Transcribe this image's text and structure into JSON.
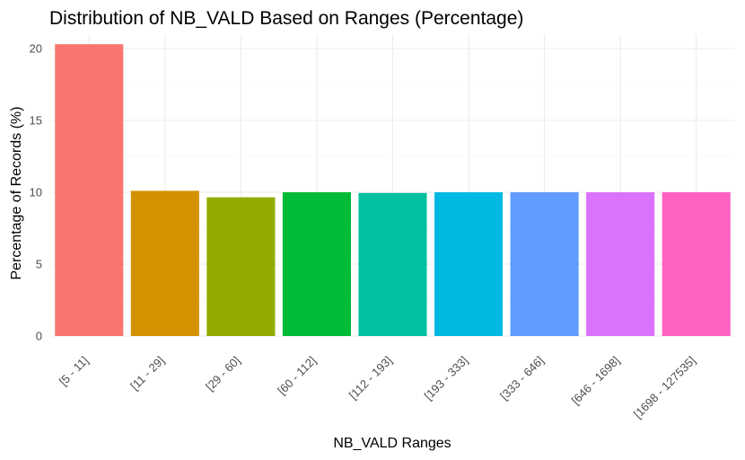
{
  "chart_data": {
    "type": "bar",
    "title": "Distribution of NB_VALD Based on Ranges (Percentage)",
    "xlabel": "NB_VALD Ranges",
    "ylabel": "Percentage of Records (%)",
    "categories": [
      "[5 - 11]",
      "[11 - 29]",
      "[29 - 60]",
      "[60 - 112]",
      "[112 - 193]",
      "[193 - 333]",
      "[333 - 646]",
      "[646 - 1698]",
      "[1698 - 127535]"
    ],
    "values": [
      20.3,
      10.1,
      9.65,
      10.0,
      9.95,
      10.0,
      10.0,
      10.0,
      10.0
    ],
    "colors": [
      "#F8766D",
      "#D39200",
      "#93AA00",
      "#00BA38",
      "#00C19F",
      "#00B9E3",
      "#619CFF",
      "#DB72FB",
      "#FF61C3"
    ],
    "ylim": [
      0,
      21
    ],
    "yticks": [
      0,
      5,
      10,
      15,
      20
    ],
    "grid": true,
    "legend": "none"
  }
}
